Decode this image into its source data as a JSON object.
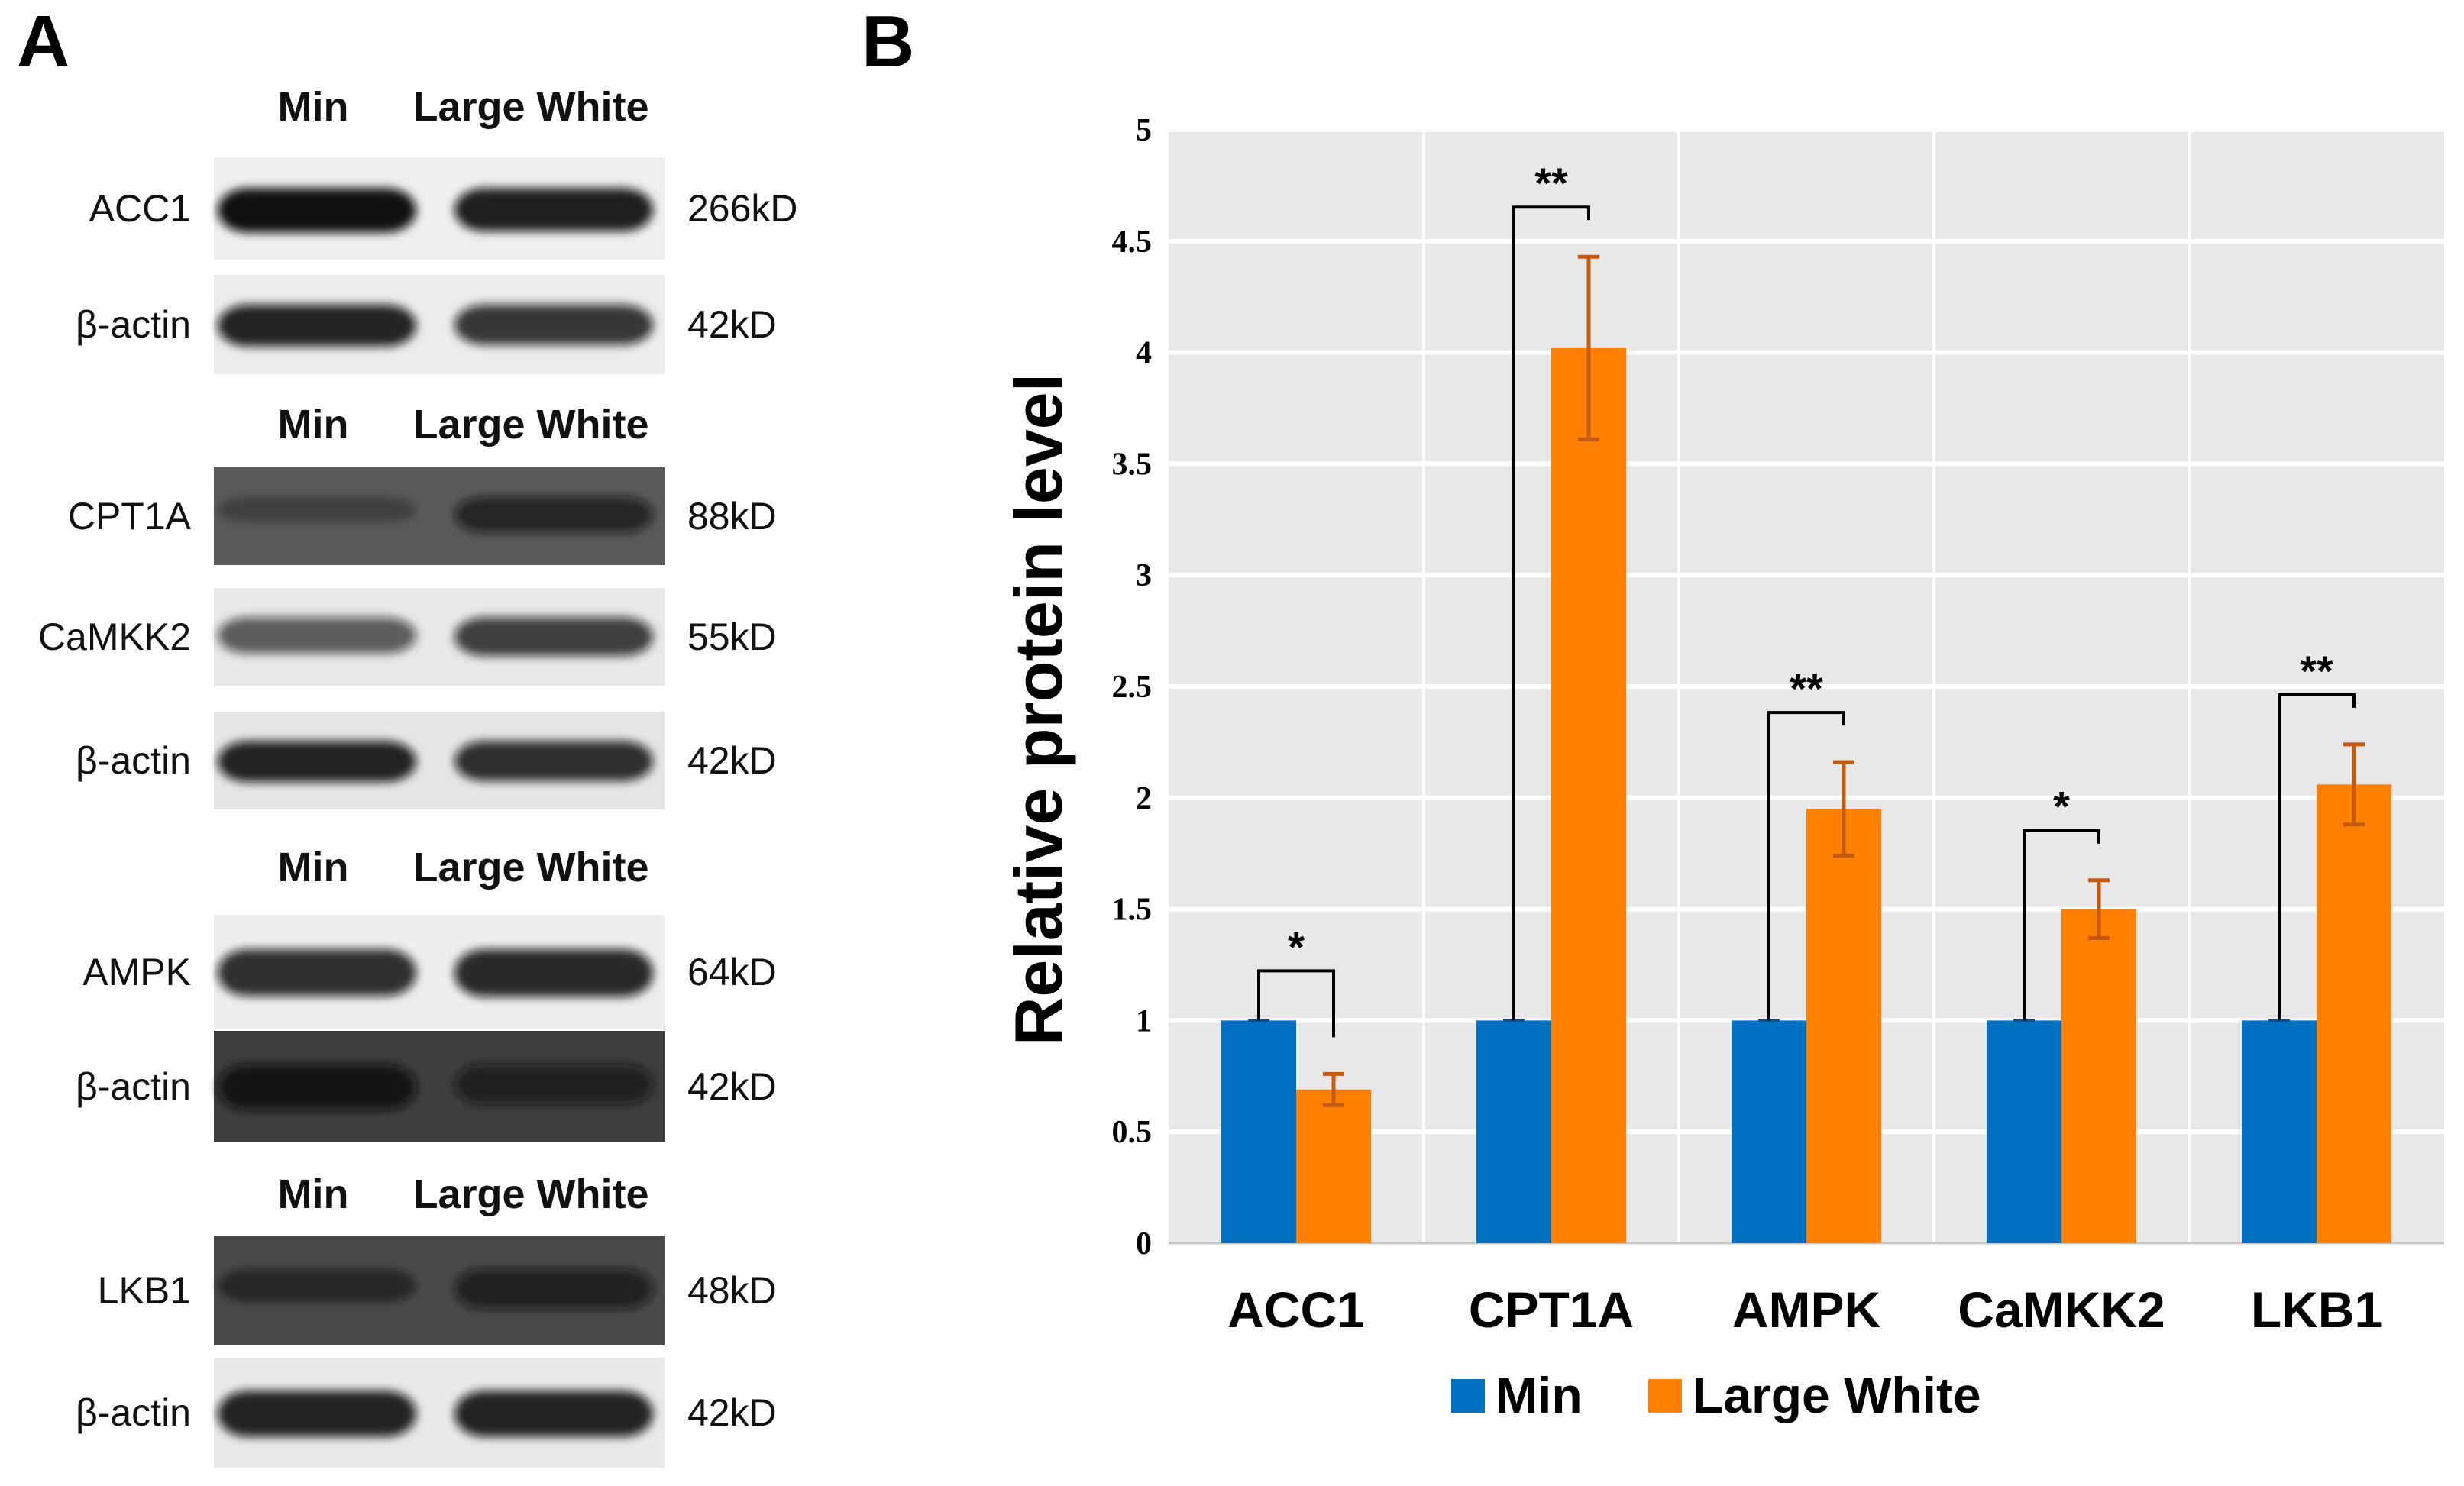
{
  "panels": {
    "a": "A",
    "b": "B"
  },
  "blot": {
    "groups": [
      {
        "header": [
          "Min",
          "Large White"
        ],
        "rows": [
          {
            "label": "ACC1",
            "kd": "266kD",
            "bg": "#efefef",
            "bands": [
              0.98,
              0.92
            ]
          },
          {
            "label": "β-actin",
            "kd": "42kD",
            "bg": "#ececec",
            "bands": [
              0.9,
              0.82
            ]
          }
        ]
      },
      {
        "header": [
          "Min",
          "Large White"
        ],
        "rows": [
          {
            "label": "CPT1A",
            "kd": "88kD",
            "bg": "#5a5a5a",
            "bands": [
              0.12,
              0.65
            ]
          },
          {
            "label": "CaMKK2",
            "kd": "55kD",
            "bg": "#e8e8e8",
            "bands": [
              0.65,
              0.78
            ]
          },
          {
            "label": "β-actin",
            "kd": "42kD",
            "bg": "#e6e6e6",
            "bands": [
              0.9,
              0.85
            ]
          }
        ]
      },
      {
        "header": [
          "Min",
          "Large White"
        ],
        "rows": [
          {
            "label": "AMPK",
            "kd": "64kD",
            "bg": "#eeeeee",
            "bands": [
              0.85,
              0.88
            ]
          },
          {
            "label": "β-actin",
            "kd": "42kD",
            "bg": "#3e3e3e",
            "bands": [
              0.85,
              0.6
            ]
          }
        ]
      },
      {
        "header": [
          "Min",
          "Large White"
        ],
        "rows": [
          {
            "label": "LKB1",
            "kd": "48kD",
            "bg": "#4a4a4a",
            "bands": [
              0.35,
              0.65
            ]
          },
          {
            "label": "β-actin",
            "kd": "42kD",
            "bg": "#e9e9e9",
            "bands": [
              0.9,
              0.9
            ]
          }
        ]
      }
    ]
  },
  "chart_data": {
    "type": "bar",
    "title": "",
    "xlabel": "",
    "ylabel": "Relative protein level",
    "ylim": [
      0,
      5
    ],
    "yticks": [
      0,
      0.5,
      1,
      1.5,
      2,
      2.5,
      3,
      3.5,
      4,
      4.5,
      5
    ],
    "ytick_labels": [
      "0",
      "0.5",
      "1",
      "1.5",
      "2",
      "2.5",
      "3",
      "3.5",
      "4",
      "4.5",
      "5"
    ],
    "grid": true,
    "legend_position": "bottom",
    "categories": [
      "ACC1",
      "CPT1A",
      "AMPK",
      "CaMKK2",
      "LKB1"
    ],
    "series": [
      {
        "name": "Min",
        "color": "#0070c0",
        "values": [
          1,
          1,
          1,
          1,
          1
        ],
        "errors": [
          0,
          0,
          0,
          0,
          0
        ]
      },
      {
        "name": "Large White",
        "color": "#ff8000",
        "values": [
          0.69,
          4.02,
          1.95,
          1.5,
          2.06
        ],
        "errors": [
          0.07,
          0.41,
          0.21,
          0.13,
          0.18
        ]
      }
    ],
    "significance": [
      "*",
      "**",
      "**",
      "*",
      "**"
    ]
  }
}
